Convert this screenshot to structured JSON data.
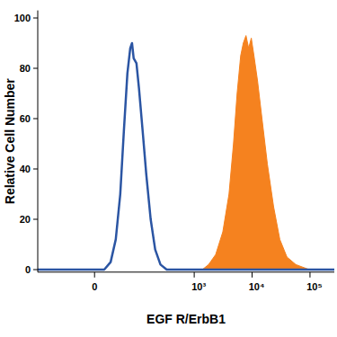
{
  "chart_data": {
    "type": "area",
    "x_label": "EGF R/ErbB1",
    "y_label": "Relative Cell Number",
    "log": "x",
    "grid": false,
    "xlim": [
      -180,
      263000
    ],
    "ylim": [
      -1,
      103
    ],
    "xticks": [
      0,
      {
        "value": 1000,
        "label": "10³"
      },
      {
        "value": 10000,
        "label": "10⁴"
      },
      {
        "value": 100000,
        "label": "10⁵"
      }
    ],
    "yticks": [
      0,
      20,
      40,
      60,
      80,
      100
    ],
    "series": [
      {
        "type": "line",
        "color": "#2b55a3",
        "x": [
          -180,
          15,
          26,
          36,
          46,
          55,
          65,
          74,
          80,
          86,
          97,
          108,
          126,
          146,
          175,
          210,
          260,
          334,
          263000
        ],
        "values": [
          0,
          0,
          3,
          12,
          30,
          55,
          78,
          88,
          90,
          84,
          82,
          72,
          55,
          38,
          20,
          8,
          2,
          0,
          0
        ]
      },
      {
        "type": "area",
        "color": "#f5821f",
        "x": [
          1380,
          1770,
          2350,
          3120,
          3990,
          4770,
          5510,
          6350,
          7040,
          7840,
          8720,
          9690,
          10770,
          12420,
          14820,
          18350,
          23520,
          30140,
          39980,
          56960,
          97050
        ],
        "values": [
          0,
          2,
          6,
          15,
          30,
          50,
          70,
          85,
          90,
          93,
          88,
          92,
          85,
          75,
          60,
          42,
          25,
          12,
          5,
          2,
          0
        ]
      }
    ]
  }
}
